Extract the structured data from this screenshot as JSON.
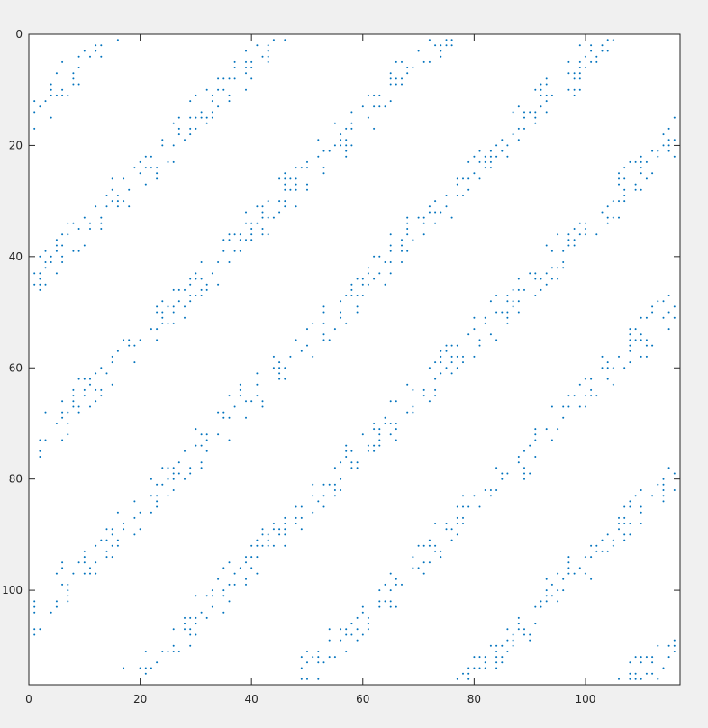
{
  "figure": {
    "background": "#f0f0f0",
    "axes_background": "#ffffff",
    "axis_color": "#262626",
    "marker_color": "#0072bd"
  },
  "chart_data": {
    "type": "scatter",
    "subtype": "sparsity-pattern (spy plot)",
    "title": "",
    "xlabel": "",
    "ylabel": "",
    "xlim": [
      0,
      117
    ],
    "ylim": [
      117,
      0
    ],
    "y_direction": "reversed (0 at top)",
    "grid": false,
    "legend": "none",
    "marker": "small dot",
    "x_ticks": [
      0,
      20,
      40,
      60,
      80,
      100
    ],
    "y_ticks": [
      0,
      20,
      40,
      60,
      80,
      100
    ],
    "pattern": {
      "description": "diagonal bands of nonzeros running from lower-left to upper-right",
      "band_spacing_in_x_plus_y": 30,
      "first_band_center_x_plus_y": 15,
      "band_half_width": 4,
      "approx_fill_density": 0.45
    }
  }
}
